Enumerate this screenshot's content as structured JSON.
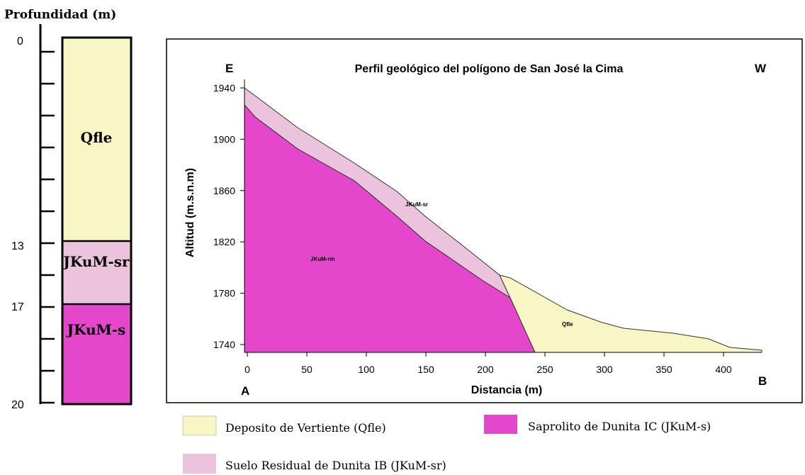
{
  "column": {
    "title": "Profundidad (m)",
    "depths": [
      "0",
      "13",
      "17",
      "20"
    ],
    "layers": [
      "Qfle",
      "JKuM-sr",
      "JKuM-s"
    ]
  },
  "profile": {
    "title": "Perfil geológico del polígono de San José la Cima",
    "left_label": "E",
    "right_label": "W",
    "start": "A",
    "end": "B",
    "y_label": "Altitud (m.s.n.m)",
    "x_label": "Distancia (m)",
    "yticks": [
      "1940",
      "1900",
      "1860",
      "1820",
      "1780",
      "1740"
    ],
    "xticks": [
      "0",
      "50",
      "100",
      "150",
      "200",
      "250",
      "300",
      "350",
      "400"
    ],
    "units": [
      "JKuM-sr",
      "JKuM-rm",
      "Qfle"
    ]
  },
  "legend": [
    "Deposito de Vertiente (Qfle)",
    "Saprolito de Dunita IC (JKuM-s)",
    "Suelo Residual de Dunita IB (JKuM-sr)"
  ]
}
